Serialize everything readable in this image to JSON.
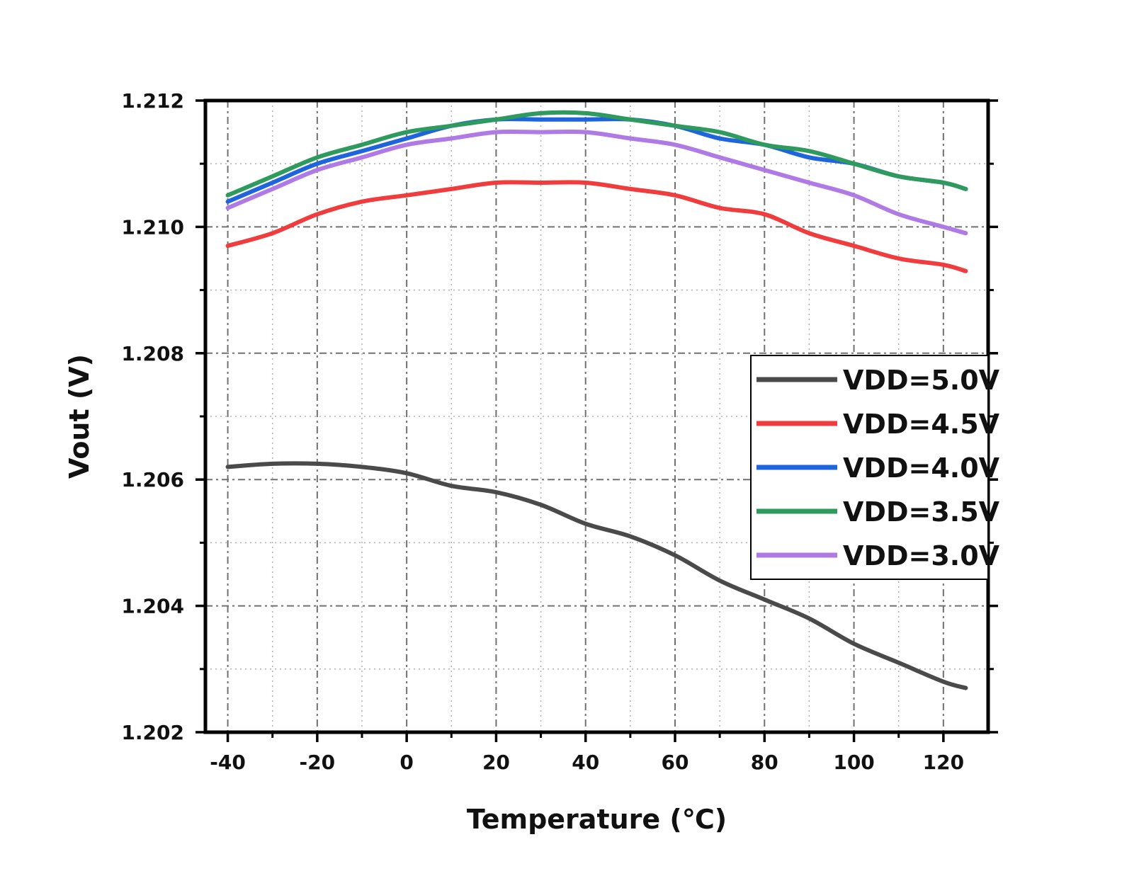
{
  "chart_data": {
    "type": "line",
    "xlabel": "Temperature (℃)",
    "ylabel": "Vout (V)",
    "xlim": [
      -45,
      130
    ],
    "ylim": [
      1.202,
      1.212
    ],
    "xticks": [
      -40,
      -20,
      0,
      20,
      40,
      60,
      80,
      100,
      120
    ],
    "yticks": [
      1.202,
      1.204,
      1.206,
      1.208,
      1.21,
      1.212
    ],
    "xtick_labels": [
      "-40",
      "-20",
      "0",
      "20",
      "40",
      "60",
      "80",
      "100",
      "120"
    ],
    "ytick_labels": [
      "1.202",
      "1.204",
      "1.206",
      "1.208",
      "1.210",
      "1.212"
    ],
    "grid": true,
    "legend_position": "right",
    "x": [
      -40,
      -30,
      -20,
      -10,
      0,
      10,
      20,
      30,
      40,
      50,
      60,
      70,
      80,
      90,
      100,
      110,
      120,
      125
    ],
    "series": [
      {
        "name": "VDD=5.0V",
        "color": "#4a4a4a",
        "values": [
          1.2062,
          1.20625,
          1.20625,
          1.2062,
          1.2061,
          1.2059,
          1.2058,
          1.2056,
          1.2053,
          1.2051,
          1.2048,
          1.2044,
          1.2041,
          1.2038,
          1.2034,
          1.2031,
          1.2028,
          1.2027
        ]
      },
      {
        "name": "VDD=4.5V",
        "color": "#f03c3c",
        "values": [
          1.2097,
          1.2099,
          1.2102,
          1.2104,
          1.2105,
          1.2106,
          1.2107,
          1.2107,
          1.2107,
          1.2106,
          1.2105,
          1.2103,
          1.2102,
          1.2099,
          1.2097,
          1.2095,
          1.2094,
          1.2093
        ]
      },
      {
        "name": "VDD=4.0V",
        "color": "#1e64dc",
        "values": [
          1.2104,
          1.2107,
          1.211,
          1.2112,
          1.2114,
          1.2116,
          1.2117,
          1.2117,
          1.2117,
          1.2117,
          1.2116,
          1.2114,
          1.2113,
          1.2111,
          1.211,
          1.2108,
          1.2107,
          1.2106
        ]
      },
      {
        "name": "VDD=3.5V",
        "color": "#2e9a5e",
        "values": [
          1.2105,
          1.2108,
          1.2111,
          1.2113,
          1.2115,
          1.2116,
          1.2117,
          1.2118,
          1.2118,
          1.2117,
          1.2116,
          1.2115,
          1.2113,
          1.2112,
          1.211,
          1.2108,
          1.2107,
          1.2106
        ]
      },
      {
        "name": "VDD=3.0V",
        "color": "#b07ae6",
        "values": [
          1.2103,
          1.2106,
          1.2109,
          1.2111,
          1.2113,
          1.2114,
          1.2115,
          1.2115,
          1.2115,
          1.2114,
          1.2113,
          1.2111,
          1.2109,
          1.2107,
          1.2105,
          1.2102,
          1.21,
          1.2099
        ]
      }
    ]
  }
}
